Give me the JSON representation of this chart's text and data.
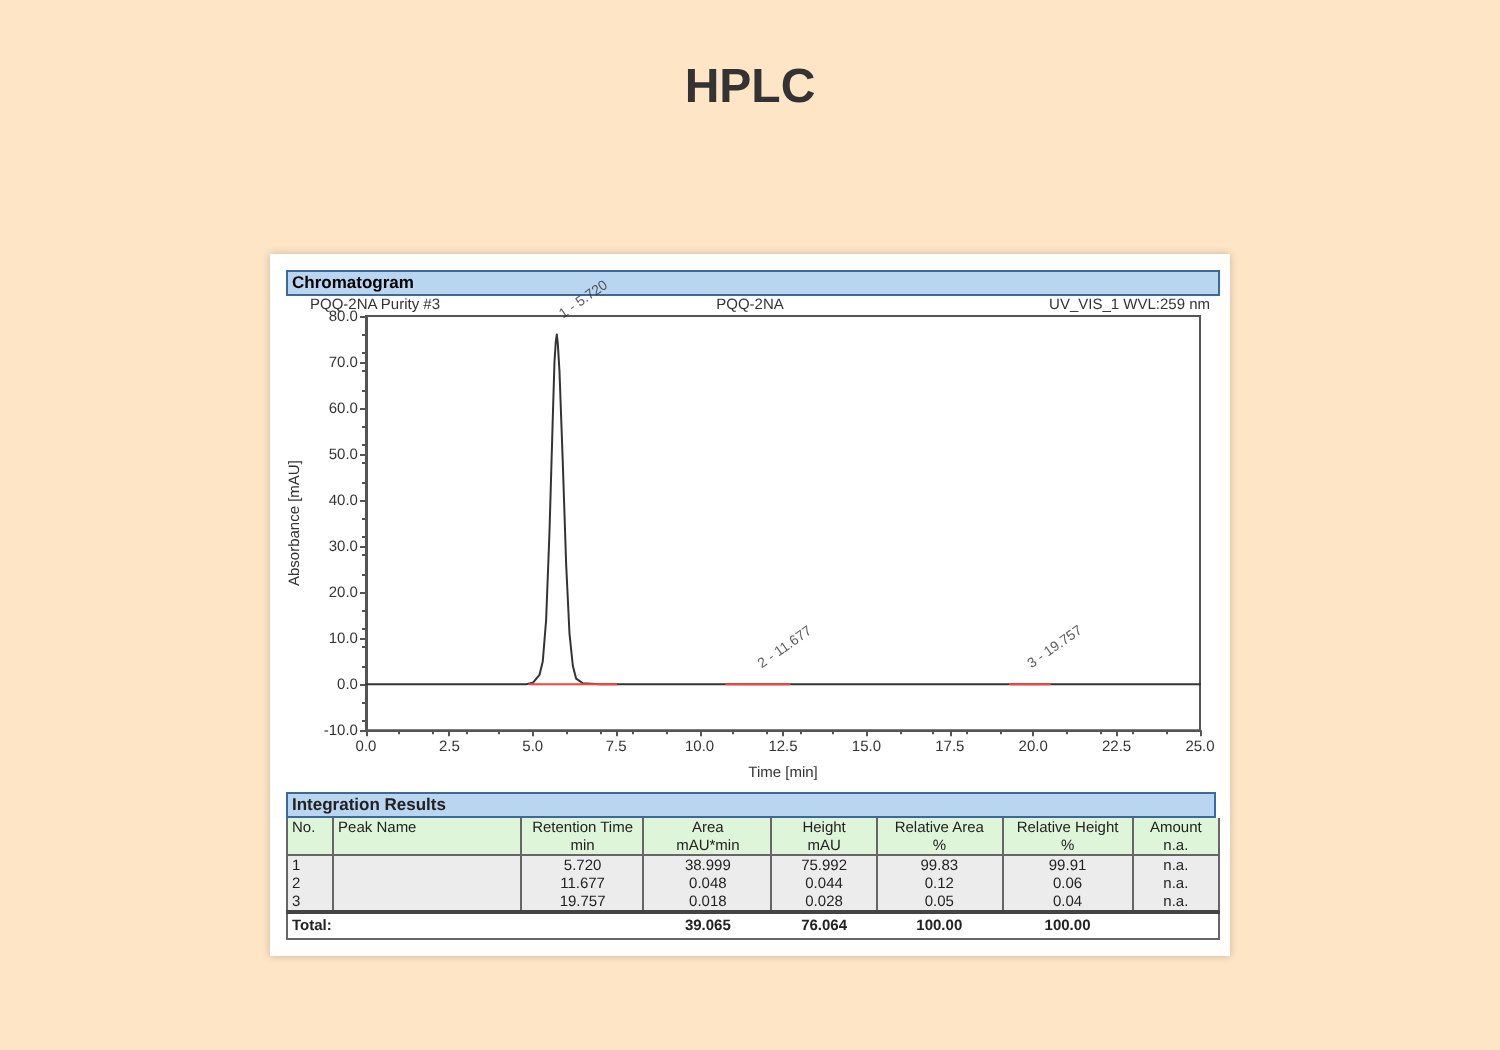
{
  "chart_data": [
    {
      "type": "line",
      "title": "HPLC",
      "subtitle": "Chromatogram",
      "xlabel": "Time [min]",
      "ylabel": "Absorbance [mAU]",
      "annotations": [
        "PQQ-2NA Purity #3",
        "PQQ-2NA",
        "UV_VIS_1 WVL:259 nm",
        {
          "text": "1 - 5.720",
          "x": 5.72,
          "y": 76
        },
        {
          "text": "2 - 11.677",
          "x": 11.677,
          "y": 0
        },
        {
          "text": "3 - 19.757",
          "x": 19.757,
          "y": 0
        }
      ],
      "series": [
        {
          "color": "#333333",
          "x": [
            0,
            4.8,
            5.0,
            5.2,
            5.3,
            5.4,
            5.5,
            5.6,
            5.65,
            5.69,
            5.72,
            5.75,
            5.8,
            5.9,
            6.0,
            6.1,
            6.2,
            6.3,
            6.5,
            7,
            25
          ],
          "values": [
            0,
            0,
            0.3,
            2,
            5,
            14,
            33,
            58,
            70,
            74.5,
            76,
            74,
            68,
            48,
            26,
            11,
            4,
            1.2,
            0.2,
            0,
            0
          ]
        },
        {
          "color": "#ff4040",
          "x": [
            4.9,
            7.5,
            7.6,
            10.8,
            12.7,
            12.8,
            19.3,
            20.5
          ],
          "values": [
            0,
            0,
            null,
            0,
            0,
            null,
            0,
            0
          ]
        }
      ],
      "xlim": [
        0,
        25
      ],
      "xticks": [
        {
          "value": 0,
          "label": "0.0"
        },
        2.5,
        {
          "value": 5,
          "label": "5.0"
        },
        7.5,
        {
          "value": 10,
          "label": "10.0"
        },
        12.5,
        {
          "value": 15,
          "label": "15.0"
        },
        17.5,
        {
          "value": 20,
          "label": "20.0"
        },
        22.5,
        {
          "value": 25,
          "label": "25.0"
        }
      ],
      "ylim": [
        -10,
        80
      ],
      "yticks": [
        {
          "value": -10,
          "label": "-10.0"
        },
        {
          "value": 0,
          "label": "0.0"
        },
        {
          "value": 10,
          "label": "10.0"
        },
        {
          "value": 20,
          "label": "20.0"
        },
        {
          "value": 30,
          "label": "30.0"
        },
        {
          "value": 40,
          "label": "40.0"
        },
        {
          "value": 50,
          "label": "50.0"
        },
        {
          "value": 60,
          "label": "60.0"
        },
        {
          "value": 70,
          "label": "70.0"
        },
        {
          "value": 80,
          "label": "80.0"
        }
      ],
      "grid": false,
      "marker": "none",
      "line_style": "solid"
    },
    {
      "type": "other",
      "title": "Integration Results",
      "cell_labels": [
        [
          "No.",
          "Peak Name",
          "Retention Time",
          "Area",
          "Height",
          "Relative Area",
          "Relative Height",
          "Amount"
        ],
        [
          null,
          null,
          "min",
          "mAU*min",
          "mAU",
          "%",
          "%",
          "n.a."
        ],
        [
          "1",
          null,
          "5.720",
          "38.999",
          "75.992",
          "99.83",
          "99.91",
          "n.a."
        ],
        [
          "2",
          null,
          "11.677",
          "0.048",
          "0.044",
          "0.12",
          "0.06",
          "n.a."
        ],
        [
          "3",
          null,
          "19.757",
          "0.018",
          "0.028",
          "0.05",
          "0.04",
          "n.a."
        ],
        [
          "Total:",
          null,
          null,
          "39.065",
          "76.064",
          "100.00",
          "100.00",
          null
        ]
      ]
    }
  ]
}
